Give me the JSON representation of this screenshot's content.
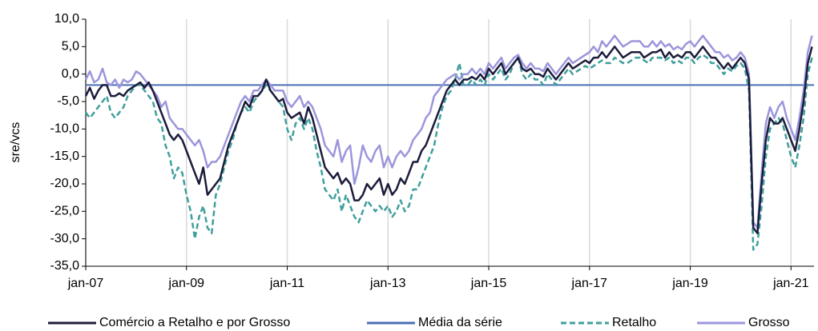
{
  "chart_data": {
    "type": "line",
    "ylabel": "sre/vcs",
    "categories": [
      "jan-07",
      null,
      null,
      null,
      null,
      null,
      null,
      null,
      null,
      null,
      null,
      null,
      null,
      null,
      null,
      null,
      null,
      null,
      null,
      null,
      null,
      null,
      null,
      null,
      "jan-09",
      null,
      null,
      null,
      null,
      null,
      null,
      null,
      null,
      null,
      null,
      null,
      null,
      null,
      null,
      null,
      null,
      null,
      null,
      null,
      null,
      null,
      null,
      null,
      "jan-11",
      null,
      null,
      null,
      null,
      null,
      null,
      null,
      null,
      null,
      null,
      null,
      null,
      null,
      null,
      null,
      null,
      null,
      null,
      null,
      null,
      null,
      null,
      null,
      "jan-13",
      null,
      null,
      null,
      null,
      null,
      null,
      null,
      null,
      null,
      null,
      null,
      null,
      null,
      null,
      null,
      null,
      null,
      null,
      null,
      null,
      null,
      null,
      null,
      "jan-15",
      null,
      null,
      null,
      null,
      null,
      null,
      null,
      null,
      null,
      null,
      null,
      null,
      null,
      null,
      null,
      null,
      null,
      null,
      null,
      null,
      null,
      null,
      null,
      "jan-17",
      null,
      null,
      null,
      null,
      null,
      null,
      null,
      null,
      null,
      null,
      null,
      null,
      null,
      null,
      null,
      null,
      null,
      null,
      null,
      null,
      null,
      null,
      null,
      "jan-19",
      null,
      null,
      null,
      null,
      null,
      null,
      null,
      null,
      null,
      null,
      null,
      null,
      null,
      null,
      null,
      null,
      null,
      null,
      null,
      null,
      null,
      null,
      null,
      "jan-21",
      null,
      null,
      null,
      null,
      null
    ],
    "series": [
      {
        "name": "Comércio a Retalho e por Grosso",
        "color": "#1c1c3c",
        "dash": "solid",
        "values": [
          -4,
          -2.5,
          -4.5,
          -3,
          -2,
          -2,
          -4,
          -4,
          -3.5,
          -4,
          -3,
          -2.5,
          -2,
          -1.5,
          -2.5,
          -1.5,
          -3,
          -5,
          -7,
          -9,
          -11,
          -12,
          -11,
          -12,
          -14,
          -16,
          -18,
          -20,
          -17,
          -22,
          -21,
          -20,
          -19,
          -16,
          -13,
          -11,
          -9,
          -7,
          -5,
          -6,
          -4,
          -4,
          -3,
          -1,
          -3,
          -4,
          -5,
          -4.5,
          -7,
          -8,
          -7.5,
          -7,
          -9,
          -6,
          -8,
          -11,
          -14,
          -17,
          -18,
          -19,
          -18,
          -20,
          -19,
          -20,
          -23,
          -23,
          -22,
          -20,
          -21,
          -20,
          -19,
          -22,
          -20,
          -22,
          -21,
          -19,
          -20,
          -18,
          -16,
          -16,
          -14,
          -13,
          -11,
          -9,
          -7,
          -5,
          -3,
          -2,
          -1,
          -2,
          -1,
          -1,
          -0.5,
          -1,
          0,
          -1,
          1,
          0,
          1,
          2,
          0,
          1,
          2,
          3,
          1,
          0.5,
          1,
          0,
          0,
          -0.5,
          1,
          0,
          -1,
          0,
          1,
          2,
          1,
          1.5,
          2,
          2.5,
          2,
          3,
          3,
          4,
          3,
          4,
          5,
          4,
          3,
          3.5,
          4,
          4,
          4,
          3,
          3.5,
          4,
          4,
          4.5,
          3,
          4,
          3,
          3.5,
          3,
          4,
          4,
          3,
          4,
          5,
          4,
          3,
          3,
          2,
          1,
          2,
          1,
          2,
          3,
          2,
          -1,
          -28,
          -29,
          -20,
          -12,
          -8,
          -9,
          -9,
          -8,
          -10,
          -12,
          -14,
          -10,
          -5,
          2,
          5
        ]
      },
      {
        "name": "Média da série",
        "color": "#4a6fb5",
        "dash": "solid",
        "value": -2
      },
      {
        "name": "Retalho",
        "color": "#3f9f9c",
        "dash": "dashed",
        "values": [
          -7,
          -8,
          -7,
          -6,
          -5,
          -4,
          -7,
          -8,
          -7,
          -6,
          -4,
          -3,
          -2,
          -2,
          -3,
          -4,
          -5,
          -8,
          -9,
          -13,
          -15,
          -19,
          -17,
          -18,
          -22,
          -25,
          -30,
          -26,
          -24,
          -28,
          -29,
          -22,
          -20,
          -17,
          -14,
          -12,
          -9,
          -7,
          -6,
          -7,
          -5,
          -4,
          -3,
          -2,
          -3,
          -4,
          -5,
          -6,
          -10,
          -12,
          -9,
          -8,
          -10,
          -8,
          -10,
          -14,
          -17,
          -21,
          -22,
          -23,
          -21,
          -25,
          -22,
          -24,
          -26,
          -27,
          -25,
          -23,
          -24,
          -25,
          -24,
          -25,
          -24,
          -26,
          -25,
          -23,
          -25,
          -24,
          -21,
          -21,
          -19,
          -17,
          -15,
          -13,
          -9,
          -6,
          -4,
          -3,
          -1,
          2,
          -2,
          -2,
          -1,
          -2,
          -1,
          -2,
          0,
          -1,
          0,
          1,
          -1,
          0,
          2,
          3,
          0,
          -1,
          0,
          -1,
          -1,
          -2,
          0,
          -1,
          -2,
          -1,
          0,
          1,
          0,
          0.5,
          1,
          1.5,
          1,
          1.5,
          2,
          2.5,
          2,
          2,
          3,
          2.5,
          2,
          2,
          2.5,
          3,
          3,
          2.5,
          2,
          3,
          3,
          3,
          2.5,
          3,
          2,
          2.5,
          2,
          3,
          3,
          2,
          3,
          3.5,
          3,
          2,
          2,
          1,
          0,
          1,
          0.5,
          1.5,
          2,
          1,
          -3,
          -32,
          -31,
          -24,
          -15,
          -10,
          -9,
          -8,
          -9,
          -12,
          -15,
          -17,
          -13,
          -8,
          0,
          3
        ]
      },
      {
        "name": "Grosso",
        "color": "#9b96dc",
        "dash": "solid",
        "values": [
          -1,
          0.5,
          -1.5,
          -1,
          1,
          -1.5,
          -2,
          -1,
          -2.5,
          -1,
          -1.5,
          -1,
          0.5,
          0,
          -1,
          -2,
          -3,
          -4,
          -6,
          -5,
          -8,
          -9,
          -10,
          -10,
          -11,
          -12,
          -13,
          -12,
          -14,
          -17,
          -16,
          -16,
          -15,
          -13,
          -11,
          -9,
          -7,
          -5,
          -4,
          -5,
          -3,
          -3,
          -2,
          -1,
          -2,
          -3,
          -3,
          -3,
          -5,
          -6,
          -5,
          -4,
          -6,
          -5,
          -6,
          -8,
          -10,
          -13,
          -14,
          -15,
          -12,
          -16,
          -14,
          -13,
          -20,
          -17,
          -13,
          -15,
          -16,
          -14,
          -13,
          -17,
          -15,
          -17,
          -15,
          -14,
          -15,
          -14,
          -12,
          -11,
          -10,
          -8,
          -7,
          -4,
          -3,
          -2,
          -1,
          -0.5,
          0,
          -1,
          0,
          0,
          1,
          0,
          1,
          0,
          2,
          1,
          2,
          3,
          1,
          2,
          3,
          3.5,
          2,
          1,
          2,
          1,
          1,
          0.5,
          2,
          1,
          0,
          1,
          2,
          3,
          2,
          2.5,
          3,
          3.5,
          4,
          5,
          4,
          6,
          5,
          6,
          7,
          6,
          5,
          5.5,
          6,
          6,
          6,
          5,
          5,
          6,
          5,
          6,
          5,
          5.5,
          4.5,
          5,
          4.5,
          5.5,
          6,
          5,
          6,
          7,
          6,
          5,
          4,
          4,
          3,
          3.5,
          2.5,
          3,
          4,
          3,
          0,
          -27,
          -28,
          -18,
          -9,
          -6,
          -8,
          -6,
          -5,
          -8,
          -10,
          -12,
          -8,
          -3,
          4,
          7
        ]
      }
    ],
    "ylim": [
      -35,
      10
    ],
    "yticks": [
      {
        "value": -35,
        "label": "-35,0"
      },
      {
        "value": -30,
        "label": "-30,0"
      },
      {
        "value": -25,
        "label": "-25,0"
      },
      {
        "value": -20,
        "label": "-20,0"
      },
      {
        "value": -15,
        "label": "-15,0"
      },
      {
        "value": -10,
        "label": "-10,0"
      },
      {
        "value": -5,
        "label": "-5,0"
      },
      {
        "value": 0,
        "label": "0,0"
      },
      {
        "value": 5,
        "label": "5,0"
      },
      {
        "value": 10,
        "label": "10,0"
      }
    ],
    "grid": "x",
    "legend": "bottom"
  }
}
